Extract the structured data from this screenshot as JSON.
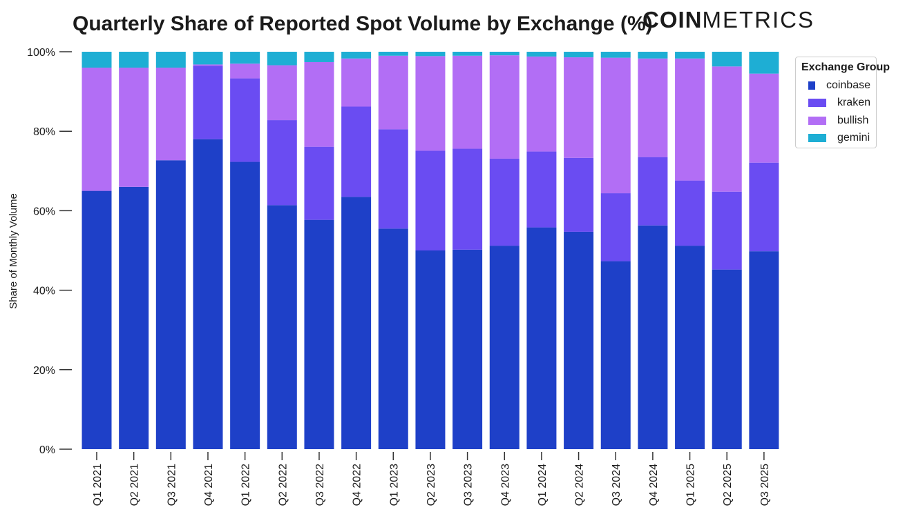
{
  "title": "Quarterly Share of Reported Spot Volume by Exchange (%)",
  "brand": {
    "bold": "COIN",
    "light": "METRICS"
  },
  "chart_data": {
    "type": "bar",
    "stacked": true,
    "categories": [
      "Q1 2021",
      "Q2 2021",
      "Q3 2021",
      "Q4 2021",
      "Q1 2022",
      "Q2 2022",
      "Q3 2022",
      "Q4 2022",
      "Q1 2023",
      "Q2 2023",
      "Q3 2023",
      "Q4 2023",
      "Q1 2024",
      "Q2 2024",
      "Q3 2024",
      "Q4 2024",
      "Q1 2025",
      "Q2 2025",
      "Q3 2025"
    ],
    "series": [
      {
        "name": "coinbase",
        "color": "#1e40c8",
        "values": [
          65,
          66,
          72.7,
          78,
          72.3,
          61.4,
          57.7,
          63.5,
          55.5,
          50,
          50.2,
          51.2,
          55.8,
          54.7,
          47.3,
          56.3,
          51.2,
          45.2,
          49.8
        ]
      },
      {
        "name": "kraken",
        "color": "#6a4cf2",
        "values": [
          0,
          0,
          0,
          18.5,
          21,
          21.4,
          18.4,
          22.7,
          25,
          25.1,
          25.4,
          21.9,
          19.1,
          18.6,
          17.1,
          17.2,
          16.4,
          19.6,
          22.3
        ]
      },
      {
        "name": "bullish",
        "color": "#b26ef5",
        "values": [
          31,
          30,
          23.3,
          0.3,
          3.7,
          13.8,
          21.3,
          12.1,
          18.5,
          23.8,
          23.4,
          26,
          23.9,
          25.3,
          34.1,
          24.8,
          30.7,
          31.5,
          22.4
        ]
      },
      {
        "name": "gemini",
        "color": "#1eaed4",
        "values": [
          4,
          4,
          4,
          3.2,
          3,
          3.4,
          2.6,
          1.7,
          1,
          1.1,
          1,
          0.9,
          1.2,
          1.4,
          1.5,
          1.7,
          1.7,
          3.7,
          5.5
        ]
      }
    ],
    "ylabel": "Share of Monthly Volume",
    "ylim": [
      0,
      100
    ],
    "yticks": [
      0,
      20,
      40,
      60,
      80,
      100
    ],
    "ytick_labels": [
      "0%",
      "20%",
      "40%",
      "60%",
      "80%",
      "100%"
    ],
    "legend": {
      "title": "Exchange Group",
      "placement": "right"
    },
    "grid": false
  }
}
